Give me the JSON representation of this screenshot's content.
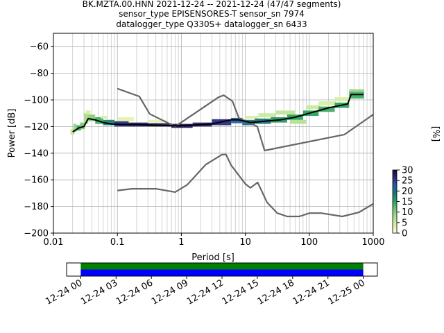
{
  "title": {
    "line1": "BK.MZTA.00.HNN   2021-12-24 -- 2021-12-24  (47/47 segments)",
    "line2": "sensor_type EPISENSORES-T sensor_sn 7974",
    "line3": "datalogger_type Q330S+ datalogger_sn 6433"
  },
  "chart_data": [
    {
      "type": "line",
      "name": "ppsd",
      "xlabel": "Period [s]",
      "ylabel": "Power [dB]",
      "xscale": "log",
      "xlim": [
        0.01,
        1000
      ],
      "ylim": [
        -200,
        -50
      ],
      "x_ticks": [
        {
          "v": 0.01,
          "label": "0.01"
        },
        {
          "v": 0.1,
          "label": "0.1"
        },
        {
          "v": 1,
          "label": "1"
        },
        {
          "v": 10,
          "label": "10"
        },
        {
          "v": 100,
          "label": "100"
        },
        {
          "v": 1000,
          "label": "1000"
        }
      ],
      "y_ticks": [
        {
          "v": -60,
          "label": "−60"
        },
        {
          "v": -80,
          "label": "−80"
        },
        {
          "v": -100,
          "label": "−100"
        },
        {
          "v": -120,
          "label": "−120"
        },
        {
          "v": -140,
          "label": "−140"
        },
        {
          "v": -160,
          "label": "−160"
        },
        {
          "v": -180,
          "label": "−180"
        },
        {
          "v": -200,
          "label": "−200"
        }
      ],
      "grid": true,
      "series": [
        {
          "role": "noise-model-high",
          "color": "#666666",
          "x": [
            0.1,
            0.22,
            0.32,
            0.8,
            3.8,
            4.6,
            6.3,
            7.9,
            15.4,
            20,
            354.8,
            1000
          ],
          "y": [
            -91.5,
            -97.4,
            -110.5,
            -120,
            -98,
            -96.5,
            -101,
            -113.5,
            -120,
            -138,
            -126,
            -111
          ]
        },
        {
          "role": "noise-model-low",
          "color": "#666666",
          "x": [
            0.1,
            0.17,
            0.4,
            0.8,
            1.24,
            2.4,
            4.3,
            5.0,
            6.0,
            10,
            12,
            15.6,
            21.9,
            31.6,
            45,
            70,
            101,
            154,
            328,
            600,
            1000
          ],
          "y": [
            -168,
            -166.7,
            -166.7,
            -169.2,
            -163.7,
            -148.6,
            -141.1,
            -141,
            -149,
            -163,
            -166,
            -162,
            -177,
            -185,
            -187.5,
            -187.5,
            -185,
            -185,
            -187.5,
            -184.4,
            -178
          ]
        },
        {
          "role": "mode",
          "color": "#000000",
          "x": [
            0.02,
            0.025,
            0.03,
            0.035,
            0.045,
            0.06,
            0.08,
            0.12,
            0.2,
            0.4,
            0.8,
            1.5,
            3,
            6,
            8,
            12,
            20,
            35,
            60,
            100,
            200,
            400,
            450,
            700
          ],
          "y": [
            -124,
            -121,
            -120,
            -114,
            -115,
            -117,
            -118,
            -118.5,
            -118.5,
            -119,
            -119.5,
            -119,
            -118,
            -115,
            -115,
            -117,
            -116,
            -115,
            -113,
            -110,
            -106,
            -103,
            -96,
            -96
          ]
        }
      ],
      "psd_bins": [
        {
          "x": 0.0185,
          "x2": 0.0215,
          "y": -122,
          "y2": -126,
          "pct": 6
        },
        {
          "x": 0.0205,
          "x2": 0.023,
          "y": -118,
          "y2": -124,
          "pct": 9
        },
        {
          "x": 0.023,
          "x2": 0.027,
          "y": -119,
          "y2": -123,
          "pct": 14
        },
        {
          "x": 0.026,
          "x2": 0.031,
          "y": -117,
          "y2": -122,
          "pct": 11
        },
        {
          "x": 0.03,
          "x2": 0.035,
          "y": -110,
          "y2": -118,
          "pct": 8
        },
        {
          "x": 0.032,
          "x2": 0.038,
          "y": -108,
          "y2": -111,
          "pct": 4
        },
        {
          "x": 0.035,
          "x2": 0.045,
          "y": -111,
          "y2": -116,
          "pct": 10
        },
        {
          "x": 0.045,
          "x2": 0.06,
          "y": -113,
          "y2": -118,
          "pct": 14
        },
        {
          "x": 0.055,
          "x2": 0.07,
          "y": -112,
          "y2": -114,
          "pct": 4
        },
        {
          "x": 0.06,
          "x2": 0.09,
          "y": -115,
          "y2": -119,
          "pct": 18
        },
        {
          "x": 0.09,
          "x2": 0.15,
          "y": -116,
          "y2": -120,
          "pct": 26
        },
        {
          "x": 0.1,
          "x2": 0.18,
          "y": -113,
          "y2": -116,
          "pct": 3
        },
        {
          "x": 0.15,
          "x2": 0.3,
          "y": -117,
          "y2": -120,
          "pct": 27
        },
        {
          "x": 0.3,
          "x2": 0.7,
          "y": -117.5,
          "y2": -120,
          "pct": 28
        },
        {
          "x": 0.3,
          "x2": 0.6,
          "y": -115,
          "y2": -117,
          "pct": 3
        },
        {
          "x": 0.7,
          "x2": 1.5,
          "y": -118,
          "y2": -121,
          "pct": 28
        },
        {
          "x": 1.5,
          "x2": 3,
          "y": -117,
          "y2": -120,
          "pct": 27
        },
        {
          "x": 3,
          "x2": 6,
          "y": -114.5,
          "y2": -119,
          "pct": 26
        },
        {
          "x": 6,
          "x2": 9,
          "y": -113.5,
          "y2": -117.5,
          "pct": 22
        },
        {
          "x": 9,
          "x2": 14,
          "y": -115,
          "y2": -119,
          "pct": 20
        },
        {
          "x": 10,
          "x2": 16,
          "y": -112,
          "y2": -114,
          "pct": 4
        },
        {
          "x": 14,
          "x2": 25,
          "y": -114,
          "y2": -118,
          "pct": 19
        },
        {
          "x": 16,
          "x2": 30,
          "y": -110,
          "y2": -113,
          "pct": 5
        },
        {
          "x": 25,
          "x2": 45,
          "y": -113,
          "y2": -117,
          "pct": 16
        },
        {
          "x": 30,
          "x2": 60,
          "y": -108,
          "y2": -111,
          "pct": 6
        },
        {
          "x": 45,
          "x2": 80,
          "y": -111,
          "y2": -115,
          "pct": 15
        },
        {
          "x": 50,
          "x2": 90,
          "y": -115,
          "y2": -118,
          "pct": 7
        },
        {
          "x": 80,
          "x2": 140,
          "y": -108,
          "y2": -112,
          "pct": 15
        },
        {
          "x": 90,
          "x2": 150,
          "y": -104,
          "y2": -107,
          "pct": 5
        },
        {
          "x": 140,
          "x2": 250,
          "y": -105,
          "y2": -109,
          "pct": 14
        },
        {
          "x": 140,
          "x2": 260,
          "y": -101,
          "y2": -104,
          "pct": 4
        },
        {
          "x": 250,
          "x2": 420,
          "y": -102,
          "y2": -106,
          "pct": 15
        },
        {
          "x": 250,
          "x2": 420,
          "y": -98,
          "y2": -101,
          "pct": 4
        },
        {
          "x": 420,
          "x2": 720,
          "y": -94,
          "y2": -99,
          "pct": 14
        },
        {
          "x": 420,
          "x2": 720,
          "y": -92,
          "y2": -94,
          "pct": 9
        }
      ]
    },
    {
      "type": "heatmap",
      "name": "colorbar",
      "label": "[%]",
      "range": [
        0,
        30
      ],
      "ticks": [
        {
          "v": 0,
          "label": "0"
        },
        {
          "v": 5,
          "label": "5"
        },
        {
          "v": 10,
          "label": "10"
        },
        {
          "v": 15,
          "label": "15"
        },
        {
          "v": 20,
          "label": "20"
        },
        {
          "v": 25,
          "label": "25"
        },
        {
          "v": 30,
          "label": "30"
        }
      ],
      "colors": [
        "#ffffe5",
        "#d9f0a3",
        "#addd8e",
        "#78c679",
        "#2ca25f",
        "#1b7873",
        "#225ea8",
        "#2d2a7a",
        "#1a0b3d"
      ]
    },
    {
      "type": "bar",
      "name": "data-availability",
      "x_ticks": [
        {
          "v": 0,
          "label": "12-24 00"
        },
        {
          "v": 3,
          "label": "12-24 03"
        },
        {
          "v": 6,
          "label": "12-24 06"
        },
        {
          "v": 9,
          "label": "12-24 09"
        },
        {
          "v": 12,
          "label": "12-24 12"
        },
        {
          "v": 15,
          "label": "12-24 15"
        },
        {
          "v": 18,
          "label": "12-24 18"
        },
        {
          "v": 21,
          "label": "12-24 21"
        },
        {
          "v": 24,
          "label": "12-25 00"
        }
      ],
      "xlim_hours": [
        -1.2,
        25.2
      ],
      "coverage": [
        {
          "start": 0,
          "end": 24,
          "color": "#008000"
        },
        {
          "start": 0,
          "end": 24,
          "color": "#0000ff"
        }
      ]
    }
  ]
}
